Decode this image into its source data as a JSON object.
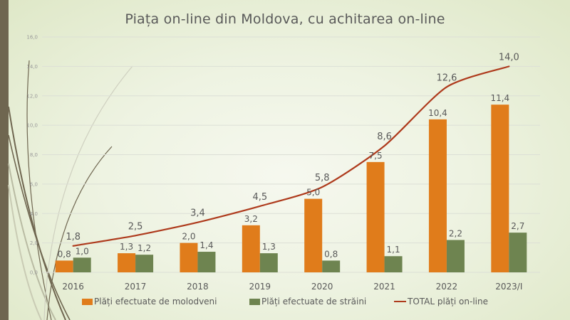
{
  "colors": {
    "moldoveni": "#e07c1b",
    "straini": "#6e8450",
    "total": "#ae3a1c",
    "text": "#595959",
    "axis_text": "#9a9a9a",
    "grid": "#dcdfd6"
  },
  "chart_data": {
    "type": "bar",
    "title": "Piața on-line din Moldova, cu achitarea on-line",
    "xlabel": "",
    "ylabel": "",
    "categories": [
      "2016",
      "2017",
      "2018",
      "2019",
      "2020",
      "2021",
      "2022",
      "2023/I"
    ],
    "ylim": [
      0,
      16
    ],
    "yticks": [
      0,
      2,
      4,
      6,
      8,
      10,
      12,
      14,
      16
    ],
    "ytick_labels": [
      "0,0",
      "2,0",
      "4,0",
      "6,0",
      "8,0",
      "10,0",
      "12,0",
      "14,0",
      "16,0"
    ],
    "grid": true,
    "legend_position": "bottom",
    "series": [
      {
        "name": "Plăți efectuate de molodveni",
        "type": "bar",
        "values": [
          0.8,
          1.3,
          2.0,
          3.2,
          5.0,
          7.5,
          10.4,
          11.4
        ],
        "labels": [
          "0,8",
          "1,3",
          "2,0",
          "3,2",
          "5,0",
          "7,5",
          "10,4",
          "11,4"
        ]
      },
      {
        "name": "Plăți efectuate de străini",
        "type": "bar",
        "values": [
          1.0,
          1.2,
          1.4,
          1.3,
          0.8,
          1.1,
          2.2,
          2.7
        ],
        "labels": [
          "1,0",
          "1,2",
          "1,4",
          "1,3",
          "0,8",
          "1,1",
          "2,2",
          "2,7"
        ]
      },
      {
        "name": "TOTAL plăți on-line",
        "type": "line",
        "values": [
          1.8,
          2.5,
          3.4,
          4.5,
          5.8,
          8.6,
          12.6,
          14.0
        ],
        "labels": [
          "1,8",
          "2,5",
          "3,4",
          "4,5",
          "5,8",
          "8,6",
          "12,6",
          "14,0"
        ]
      }
    ]
  },
  "legend": {
    "items": [
      {
        "label": "Plăți efectuate de molodveni",
        "icon": "orange-square"
      },
      {
        "label": "Plăți efectuate de străini",
        "icon": "green-square"
      },
      {
        "label": "TOTAL plăți on-line",
        "icon": "red-line"
      }
    ]
  }
}
